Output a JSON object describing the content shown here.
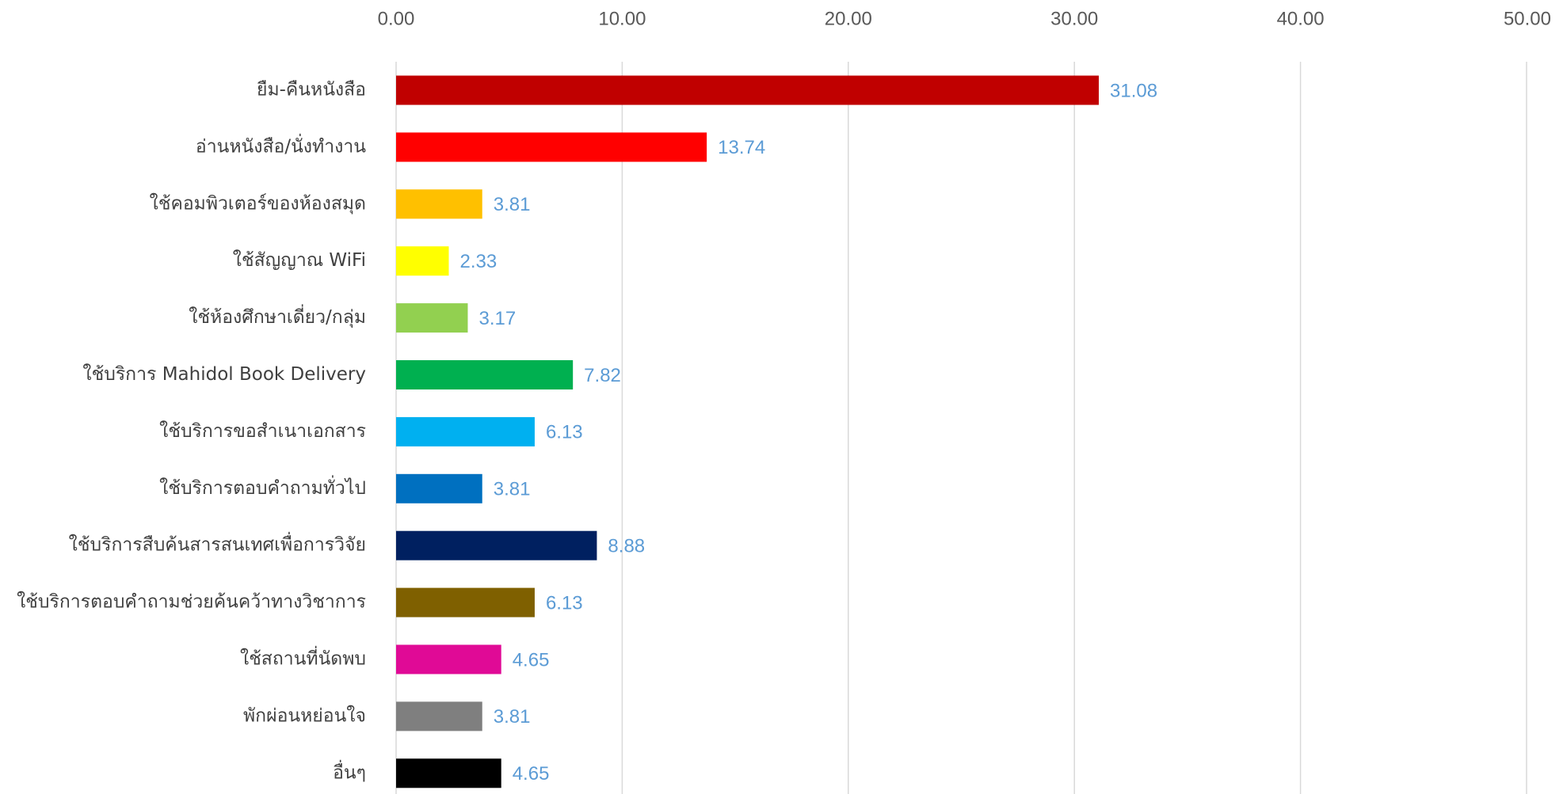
{
  "chart_data": {
    "type": "bar",
    "orientation": "horizontal",
    "x_axis_position": "top",
    "grid": true,
    "xlim": [
      0,
      50
    ],
    "x_ticks": [
      "0.00",
      "10.00",
      "20.00",
      "30.00",
      "40.00",
      "50.00"
    ],
    "categories": [
      "ยืม-คืนหนังสือ",
      "อ่านหนังสือ/นั่งทำงาน",
      "ใช้คอมพิวเตอร์ของห้องสมุด",
      "ใช้สัญญาณ WiFi",
      "ใช้ห้องศึกษาเดี่ยว/กลุ่ม",
      "ใช้บริการ Mahidol Book Delivery",
      "ใช้บริการขอสำเนาเอกสาร",
      "ใช้บริการตอบคำถามทั่วไป",
      "ใช้บริการสืบค้นสารสนเทศเพื่อการวิจัย",
      "ใช้บริการตอบคำถามช่วยค้นคว้าทางวิชาการ",
      "ใช้สถานที่นัดพบ",
      "พักผ่อนหย่อนใจ",
      "อื่นๆ"
    ],
    "values": [
      31.08,
      13.74,
      3.81,
      2.33,
      3.17,
      7.82,
      6.13,
      3.81,
      8.88,
      6.13,
      4.65,
      3.81,
      4.65
    ],
    "data_labels": [
      "31.08",
      "13.74",
      "3.81",
      "2.33",
      "3.17",
      "7.82",
      "6.13",
      "3.81",
      "8.88",
      "6.13",
      "4.65",
      "3.81",
      "4.65"
    ],
    "colors": [
      "#c00000",
      "#ff0000",
      "#ffc000",
      "#ffff00",
      "#92d050",
      "#00b050",
      "#00b0f0",
      "#0070c0",
      "#002060",
      "#7f6000",
      "#e00a96",
      "#7f7f7f",
      "#000000"
    ],
    "label_color": "#5b9bd5"
  }
}
